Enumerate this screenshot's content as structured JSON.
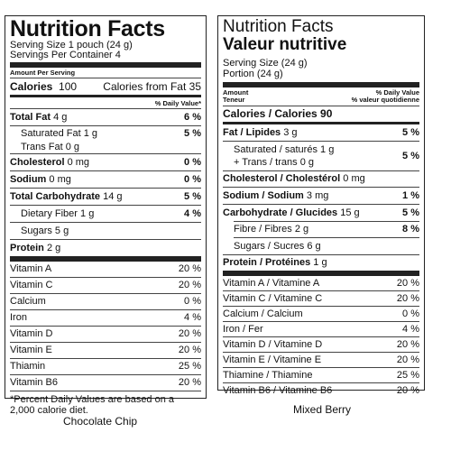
{
  "left": {
    "title": "Nutrition Facts",
    "serving_size": "Serving Size 1 pouch (24 g)",
    "servings_per_container": "Servings Per Container 4",
    "amount_per_serving": "Amount Per Serving",
    "calories_label": "Calories",
    "calories_value": "100",
    "calories_from_fat": "Calories from Fat 35",
    "dv_header": "% Daily Value*",
    "nutrients": [
      {
        "name": "Total Fat",
        "amount": "4 g",
        "dv": "6 %"
      },
      {
        "name": "Saturated Fat",
        "amount": "1 g",
        "dv": "5 %"
      },
      {
        "name": "Trans Fat",
        "amount": "0 g",
        "dv": ""
      },
      {
        "name": "Cholesterol",
        "amount": "0 mg",
        "dv": "0 %"
      },
      {
        "name": "Sodium",
        "amount": "0 mg",
        "dv": "0 %"
      },
      {
        "name": "Total Carbohydrate",
        "amount": "14 g",
        "dv": "5 %"
      },
      {
        "name": "Dietary Fiber",
        "amount": "1 g",
        "dv": "4 %"
      },
      {
        "name": "Sugars",
        "amount": "5 g",
        "dv": ""
      },
      {
        "name": "Protein",
        "amount": "2 g",
        "dv": ""
      }
    ],
    "vitamins": [
      {
        "name": "Vitamin A",
        "dv": "20 %"
      },
      {
        "name": "Vitamin C",
        "dv": "20 %"
      },
      {
        "name": "Calcium",
        "dv": "0 %"
      },
      {
        "name": "Iron",
        "dv": "4 %"
      },
      {
        "name": "Vitamin D",
        "dv": "20 %"
      },
      {
        "name": "Vitamin E",
        "dv": "20 %"
      },
      {
        "name": "Thiamin",
        "dv": "25 %"
      },
      {
        "name": "Vitamin B6",
        "dv": "20 %"
      }
    ],
    "footnote": "*Percent Daily Values are based on a 2,000 calorie diet.",
    "caption": "Chocolate Chip"
  },
  "right": {
    "title_en": "Nutrition Facts",
    "title_fr": "Valeur nutritive",
    "serving_size": "Serving Size (24 g)",
    "portion": "Portion (24 g)",
    "amount_en": "Amount",
    "amount_fr": "Teneur",
    "dv_en": "% Daily Value",
    "dv_fr": "% valeur quotidienne",
    "calories": "Calories / Calories 90",
    "nutrients": [
      {
        "name": "Fat / Lipides",
        "amount": "3 g",
        "dv": "5 %"
      },
      {
        "name": "Saturated / saturés",
        "amount": "1 g",
        "dv": "5 %"
      },
      {
        "name": "+ Trans / trans",
        "amount": "0 g",
        "dv": ""
      },
      {
        "name": "Cholesterol / Cholestérol",
        "amount": "0 mg",
        "dv": ""
      },
      {
        "name": "Sodium / Sodium",
        "amount": "3 mg",
        "dv": "1 %"
      },
      {
        "name": "Carbohydrate / Glucides",
        "amount": "15 g",
        "dv": "5 %"
      },
      {
        "name": "Fibre / Fibres",
        "amount": "2 g",
        "dv": "8 %"
      },
      {
        "name": "Sugars / Sucres",
        "amount": "6 g",
        "dv": ""
      },
      {
        "name": "Protein / Protéines",
        "amount": "1 g",
        "dv": ""
      }
    ],
    "vitamins": [
      {
        "name": "Vitamin A / Vitamine A",
        "dv": "20 %"
      },
      {
        "name": "Vitamin C / Vitamine C",
        "dv": "20 %"
      },
      {
        "name": "Calcium / Calcium",
        "dv": "0 %"
      },
      {
        "name": "Iron / Fer",
        "dv": "4 %"
      },
      {
        "name": "Vitamin D / Vitamine D",
        "dv": "20 %"
      },
      {
        "name": "Vitamin E / Vitamine E",
        "dv": "20 %"
      },
      {
        "name": "Thiamine / Thiamine",
        "dv": "25 %"
      },
      {
        "name": "Vitamin B6 / Vitamine B6",
        "dv": "20 %"
      }
    ],
    "caption": "Mixed Berry"
  }
}
